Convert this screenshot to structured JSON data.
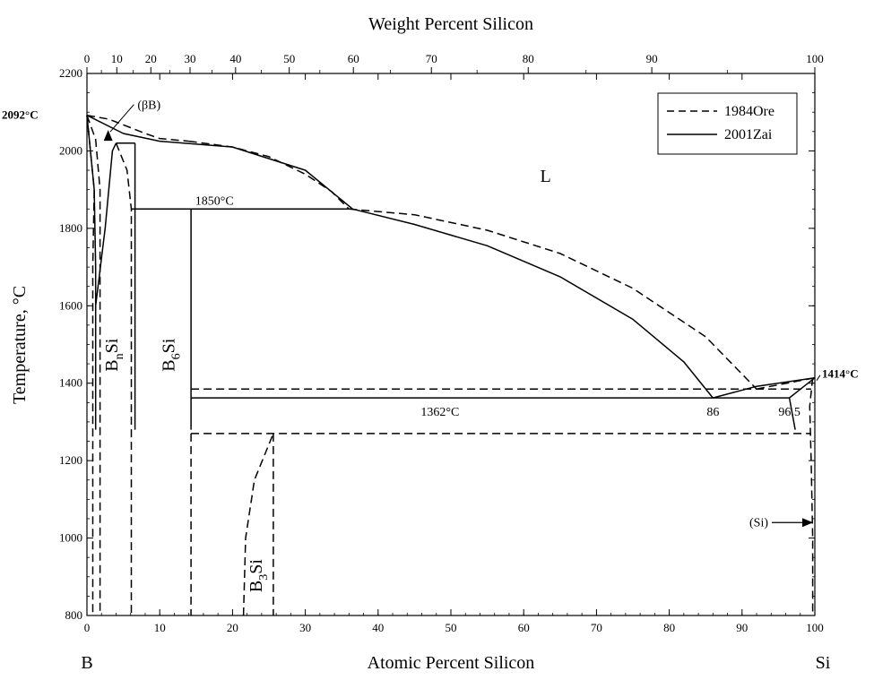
{
  "chart_data": {
    "type": "line",
    "title": "",
    "top_axis": {
      "title": "Weight Percent Silicon",
      "ticks": [
        "0",
        "10",
        "20",
        "30",
        "40",
        "50",
        "60",
        "70",
        "80",
        "90",
        "100"
      ]
    },
    "x_axis": {
      "title": "Atomic Percent Silicon",
      "range": [
        0,
        100
      ],
      "ticks": [
        "0",
        "10",
        "20",
        "30",
        "40",
        "50",
        "60",
        "70",
        "80",
        "90",
        "100"
      ]
    },
    "y_axis": {
      "title": "Temperature, °C",
      "range": [
        800,
        2200
      ],
      "ticks": [
        "800",
        "1000",
        "1200",
        "1400",
        "1600",
        "1800",
        "2000",
        "2200"
      ]
    },
    "element_left": "B",
    "element_right": "Si",
    "legend": {
      "placement": "top-right",
      "entries": [
        {
          "label": "1984Ore",
          "style": "dashed"
        },
        {
          "label": "2001Zai",
          "style": "solid"
        }
      ]
    },
    "series": [
      {
        "name": "1984Ore",
        "style": "dashed",
        "lines": [
          [
            [
              0,
              2092
            ],
            [
              3,
              2082
            ],
            [
              6,
              2060
            ],
            [
              8,
              2045
            ],
            [
              10,
              2032
            ],
            [
              14,
              2025
            ]
          ],
          [
            [
              14,
              2025
            ],
            [
              20,
              2010
            ],
            [
              25,
              1985
            ],
            [
              30,
              1940
            ],
            [
              33.6,
              1895
            ],
            [
              36,
              1850
            ]
          ],
          [
            [
              36,
              1850
            ],
            [
              45,
              1835
            ],
            [
              55,
              1795
            ],
            [
              65,
              1735
            ],
            [
              75,
              1645
            ],
            [
              85,
              1520
            ],
            [
              92,
              1385
            ]
          ],
          [
            [
              92,
              1385
            ],
            [
              100,
              1414
            ]
          ],
          [
            [
              0,
              2092
            ],
            [
              1.2,
              2030
            ],
            [
              1.8,
              1900
            ],
            [
              1.8,
              800
            ]
          ],
          [
            [
              0,
              2092
            ],
            [
              1,
              1900
            ],
            [
              0.8,
              1700
            ],
            [
              0.8,
              800
            ]
          ],
          [
            [
              4,
              2020
            ],
            [
              5.5,
              1950
            ],
            [
              6.1,
              1850
            ],
            [
              6.1,
              800
            ]
          ],
          [
            [
              14.3,
              1270
            ],
            [
              14.3,
              800
            ]
          ],
          [
            [
              14.3,
              1385
            ],
            [
              99.5,
              1385
            ]
          ],
          [
            [
              14.3,
              1270
            ],
            [
              99.5,
              1270
            ]
          ],
          [
            [
              21.5,
              800
            ],
            [
              21.8,
              1000
            ],
            [
              23,
              1150
            ],
            [
              25.6,
              1270
            ]
          ],
          [
            [
              25.6,
              1270
            ],
            [
              25.6,
              800
            ]
          ],
          [
            [
              99.7,
              1414
            ],
            [
              99.3,
              1340
            ],
            [
              99.5,
              1200
            ],
            [
              99.7,
              1000
            ],
            [
              99.7,
              800
            ]
          ]
        ]
      },
      {
        "name": "2001Zai",
        "style": "solid",
        "lines": [
          [
            [
              0,
              2092
            ],
            [
              5,
              2045
            ],
            [
              10,
              2025
            ],
            [
              20,
              2010
            ],
            [
              30,
              1950
            ],
            [
              36.5,
              1850
            ]
          ],
          [
            [
              36.5,
              1850
            ],
            [
              45,
              1810
            ],
            [
              55,
              1755
            ],
            [
              65,
              1675
            ],
            [
              75,
              1565
            ],
            [
              82,
              1455
            ],
            [
              86,
              1362
            ]
          ],
          [
            [
              86,
              1362
            ],
            [
              92,
              1392
            ],
            [
              100,
              1414
            ]
          ],
          [
            [
              0,
              2092
            ],
            [
              1,
              1900
            ],
            [
              1.2,
              1700
            ],
            [
              1.2,
              1280
            ]
          ],
          [
            [
              1.2,
              1600
            ],
            [
              2.5,
              1800
            ],
            [
              3.5,
              2000
            ],
            [
              4,
              2020
            ]
          ],
          [
            [
              4,
              2020
            ],
            [
              6.6,
              2020
            ]
          ],
          [
            [
              6.6,
              2020
            ],
            [
              6.6,
              1280
            ]
          ],
          [
            [
              6.1,
              1850
            ],
            [
              36.5,
              1850
            ]
          ],
          [
            [
              14.3,
              1850
            ],
            [
              14.3,
              1280
            ]
          ],
          [
            [
              14.3,
              1362
            ],
            [
              96.5,
              1362
            ]
          ],
          [
            [
              96.5,
              1362
            ],
            [
              97.3,
              1280
            ]
          ],
          [
            [
              96.5,
              1362
            ],
            [
              100,
              1414
            ]
          ]
        ]
      }
    ],
    "annotations": [
      {
        "text": "2092°C",
        "x": 0,
        "y": 2092,
        "bold": true
      },
      {
        "text": "1414°C",
        "x": 100,
        "y": 1414,
        "bold": true
      },
      {
        "text": "(βB)",
        "x": 3,
        "y": 2092
      },
      {
        "text": "L",
        "x": 63,
        "y": 1920
      },
      {
        "text": "1850°C",
        "x": 14.5,
        "y": 1850
      },
      {
        "text": "1362°C",
        "x": 48.5,
        "y": 1362
      },
      {
        "text": "86",
        "x": 86,
        "y": 1362
      },
      {
        "text": "96.5",
        "x": 96.5,
        "y": 1362
      },
      {
        "text": "(Si)",
        "x": 100,
        "y": 1040
      }
    ],
    "phase_labels": [
      {
        "base": "B",
        "sub": "n",
        "rest": "Si",
        "x": 4.2,
        "y": 1430,
        "rotate": true
      },
      {
        "base": "B",
        "sub": "6",
        "rest": "Si",
        "x": 12,
        "y": 1430,
        "rotate": true
      },
      {
        "base": "B",
        "sub": "3",
        "rest": "Si",
        "x": 24,
        "y": 860,
        "rotate": true
      }
    ]
  }
}
